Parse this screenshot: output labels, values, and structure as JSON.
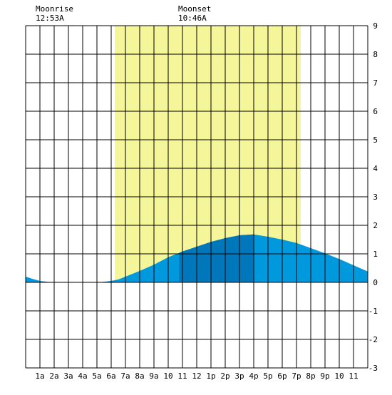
{
  "chart_data": {
    "type": "area",
    "annotations": {
      "moonrise": {
        "label": "Moonrise",
        "time": "12:53A",
        "hour": 0.88
      },
      "moonset": {
        "label": "Moonset",
        "time": "10:46A",
        "hour": 10.77
      }
    },
    "daylight": {
      "start_hour": 6.25,
      "end_hour": 19.3
    },
    "x_ticks": [
      "1a",
      "2a",
      "3a",
      "4a",
      "5a",
      "6a",
      "7a",
      "8a",
      "9a",
      "10",
      "11",
      "12",
      "1p",
      "2p",
      "3p",
      "4p",
      "5p",
      "6p",
      "7p",
      "8p",
      "9p",
      "10",
      "11"
    ],
    "xlim": [
      0,
      24
    ],
    "ylim": [
      -3,
      9
    ],
    "y_ticks": [
      "-3",
      "-2",
      "-1",
      "0",
      "1",
      "2",
      "3",
      "4",
      "5",
      "6",
      "7",
      "8",
      "9"
    ],
    "grid": true,
    "series": [
      {
        "values": [
          [
            0,
            0.2
          ],
          [
            0.5,
            0.12
          ],
          [
            1,
            0.05
          ],
          [
            1.5,
            0.02
          ],
          [
            2,
            0.0
          ],
          [
            3,
            -0.01
          ],
          [
            4,
            -0.01
          ],
          [
            5,
            0.0
          ],
          [
            5.5,
            0.02
          ],
          [
            6,
            0.05
          ],
          [
            6.5,
            0.1
          ],
          [
            7,
            0.2
          ],
          [
            8,
            0.4
          ],
          [
            9,
            0.62
          ],
          [
            10,
            0.88
          ],
          [
            11,
            1.08
          ],
          [
            12,
            1.25
          ],
          [
            13,
            1.42
          ],
          [
            14,
            1.55
          ],
          [
            15,
            1.65
          ],
          [
            16,
            1.68
          ],
          [
            17,
            1.6
          ],
          [
            18,
            1.5
          ],
          [
            19,
            1.38
          ],
          [
            20,
            1.2
          ],
          [
            21,
            1.02
          ],
          [
            22,
            0.82
          ],
          [
            23,
            0.6
          ],
          [
            24,
            0.38
          ]
        ]
      }
    ],
    "highlight_range": {
      "start_hour": 10.77,
      "end_hour": 16
    },
    "colors": {
      "daylight": "#f5f59a",
      "tide": "#0099dd",
      "tide_highlight": "#0077bb",
      "grid": "#000000",
      "background": "#ffffff"
    }
  }
}
